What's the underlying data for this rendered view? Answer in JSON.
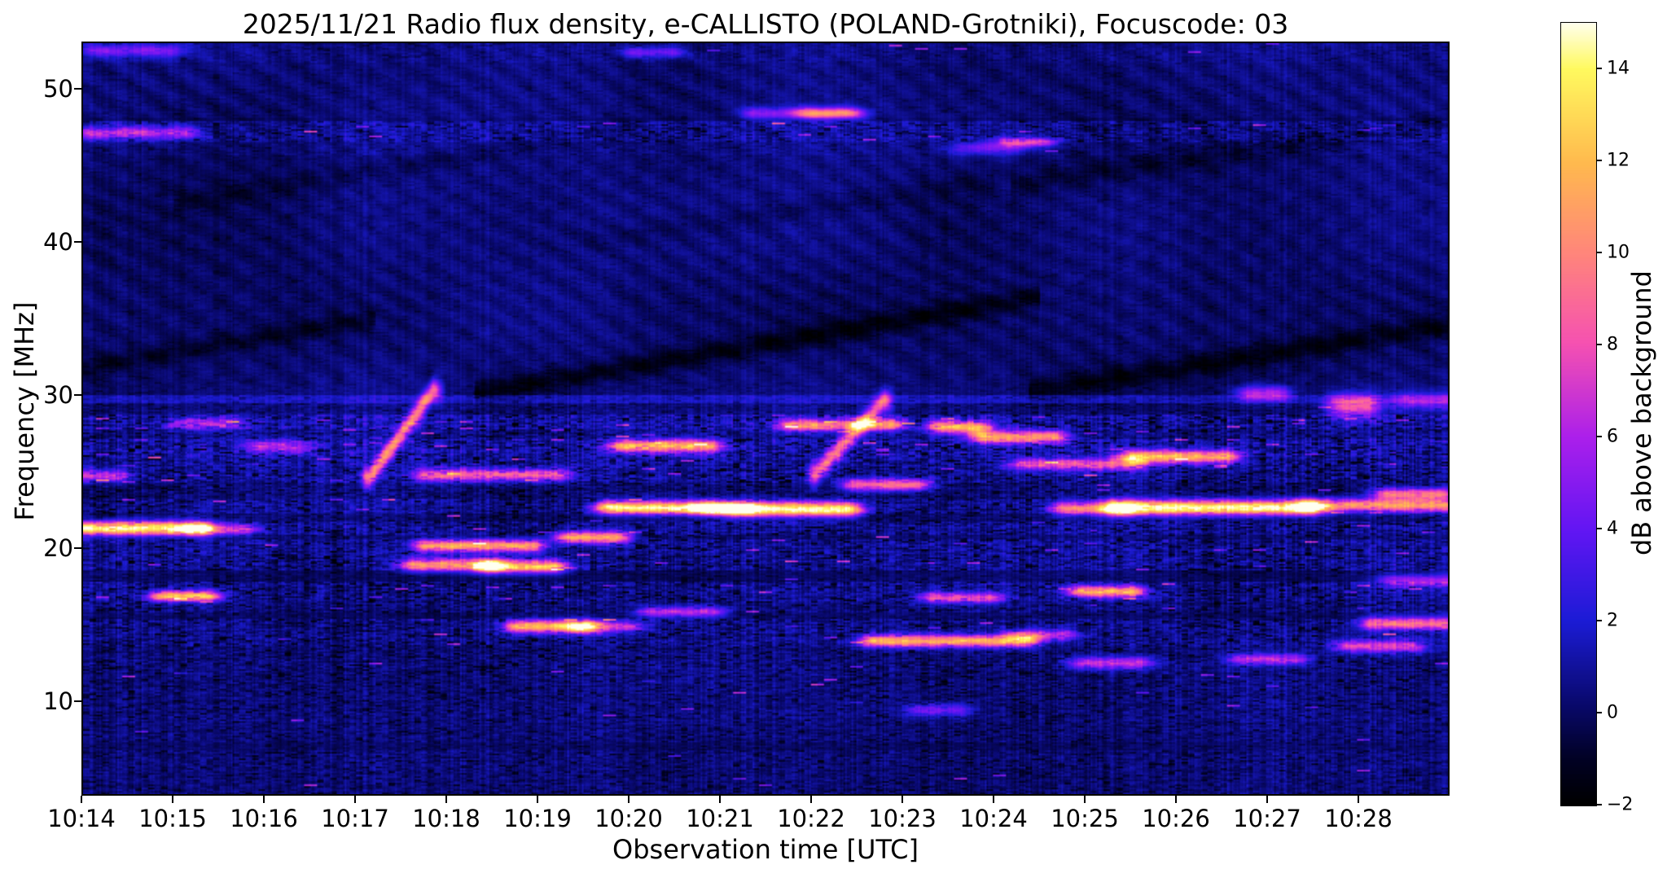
{
  "chart_data": {
    "type": "heatmap",
    "title": "2025/11/21  Radio flux density, e-CALLISTO (POLAND-Grotniki), Focuscode: 03",
    "xlabel": "Observation time [UTC]",
    "ylabel": "Frequency [MHz]",
    "cbar_label": "dB above background",
    "x_start": "10:14",
    "x_span_min": 15.0,
    "x_ticks": [
      {
        "label": "10:14",
        "min": 0
      },
      {
        "label": "10:15",
        "min": 1
      },
      {
        "label": "10:16",
        "min": 2
      },
      {
        "label": "10:17",
        "min": 3
      },
      {
        "label": "10:18",
        "min": 4
      },
      {
        "label": "10:19",
        "min": 5
      },
      {
        "label": "10:20",
        "min": 6
      },
      {
        "label": "10:21",
        "min": 7
      },
      {
        "label": "10:22",
        "min": 8
      },
      {
        "label": "10:23",
        "min": 9
      },
      {
        "label": "10:24",
        "min": 10
      },
      {
        "label": "10:25",
        "min": 11
      },
      {
        "label": "10:26",
        "min": 12
      },
      {
        "label": "10:27",
        "min": 13
      },
      {
        "label": "10:28",
        "min": 14
      }
    ],
    "y_ticks": [
      {
        "label": "50",
        "mhz": 50
      },
      {
        "label": "40",
        "mhz": 40
      },
      {
        "label": "30",
        "mhz": 30
      },
      {
        "label": "20",
        "mhz": 20
      },
      {
        "label": "10",
        "mhz": 10
      }
    ],
    "f_top": 53.1,
    "f_bottom": 3.8,
    "c_min": -2,
    "c_max": 15,
    "cbar_ticks": [
      {
        "label": "14",
        "db": 14
      },
      {
        "label": "12",
        "db": 12
      },
      {
        "label": "10",
        "db": 10
      },
      {
        "label": "8",
        "db": 8
      },
      {
        "label": "6",
        "db": 6
      },
      {
        "label": "4",
        "db": 4
      },
      {
        "label": "2",
        "db": 2
      },
      {
        "label": "0",
        "db": 0
      },
      {
        "label": "−2",
        "db": -2
      }
    ],
    "colormap_stops": [
      [
        0.0,
        0,
        0,
        0
      ],
      [
        0.06,
        2,
        2,
        38
      ],
      [
        0.12,
        8,
        8,
        100
      ],
      [
        0.235,
        28,
        28,
        214
      ],
      [
        0.35,
        98,
        22,
        244
      ],
      [
        0.47,
        172,
        32,
        235
      ],
      [
        0.59,
        246,
        82,
        177
      ],
      [
        0.7,
        255,
        132,
        125
      ],
      [
        0.82,
        255,
        186,
        78
      ],
      [
        0.94,
        255,
        250,
        95
      ],
      [
        1.0,
        255,
        255,
        240
      ]
    ],
    "bands": [
      [
        51.8,
        53.2,
        0.55,
        0.5,
        0.004
      ],
      [
        48.25,
        51.8,
        0.35,
        0.35,
        0.0005
      ],
      [
        47.95,
        48.25,
        0.05,
        0.25,
        0
      ],
      [
        46.6,
        47.95,
        0.85,
        1.05,
        0.01
      ],
      [
        45.8,
        46.6,
        0.5,
        0.5,
        0.002
      ],
      [
        30.65,
        45.8,
        0.3,
        0.33,
        0
      ],
      [
        29.95,
        30.65,
        0.35,
        0.4,
        0
      ],
      [
        29.45,
        29.95,
        1.7,
        0.65,
        0.002
      ],
      [
        28.75,
        29.45,
        0.45,
        0.7,
        0.002
      ],
      [
        27.75,
        28.75,
        1.25,
        1.55,
        0.018
      ],
      [
        27.15,
        27.75,
        0.7,
        1.1,
        0.008
      ],
      [
        25.95,
        27.15,
        1.25,
        1.55,
        0.018
      ],
      [
        25.15,
        25.95,
        1.0,
        1.4,
        0.012
      ],
      [
        24.25,
        25.15,
        0.8,
        1.3,
        0.01
      ],
      [
        23.15,
        24.25,
        0.35,
        0.9,
        0.004
      ],
      [
        22.25,
        23.15,
        0.8,
        1.2,
        0.008
      ],
      [
        21.65,
        22.25,
        0.25,
        0.7,
        0.003
      ],
      [
        20.85,
        21.65,
        0.9,
        1.3,
        0.01
      ],
      [
        20.5,
        20.85,
        0.3,
        0.8,
        0.003
      ],
      [
        19.65,
        20.5,
        0.9,
        1.3,
        0.01
      ],
      [
        18.45,
        19.65,
        0.85,
        1.3,
        0.01
      ],
      [
        17.75,
        18.45,
        0.15,
        0.5,
        0.001
      ],
      [
        16.45,
        17.75,
        0.85,
        1.3,
        0.012
      ],
      [
        15.75,
        16.45,
        0.6,
        1.0,
        0.006
      ],
      [
        15.25,
        15.75,
        0.2,
        0.6,
        0.002
      ],
      [
        14.45,
        15.25,
        0.75,
        1.2,
        0.01
      ],
      [
        13.45,
        14.45,
        0.75,
        1.2,
        0.01
      ],
      [
        12.75,
        13.45,
        0.5,
        0.9,
        0.005
      ],
      [
        11.95,
        12.75,
        0.6,
        1.0,
        0.006
      ],
      [
        10.65,
        11.95,
        0.55,
        0.9,
        0.004
      ],
      [
        9.45,
        10.65,
        0.55,
        0.85,
        0.004
      ],
      [
        8.45,
        9.45,
        0.6,
        0.9,
        0.005
      ],
      [
        7.25,
        8.45,
        0.5,
        0.8,
        0.003
      ],
      [
        6.65,
        7.25,
        0.2,
        0.5,
        0.002
      ],
      [
        5.45,
        6.65,
        0.5,
        0.85,
        0.004
      ],
      [
        3.8,
        5.45,
        0.45,
        0.8,
        0.003
      ]
    ],
    "features": [
      [
        0.0,
        1.25,
        21.25,
        0.32,
        15.5
      ],
      [
        1.25,
        1.75,
        21.2,
        0.26,
        7
      ],
      [
        0.9,
        1.35,
        16.8,
        0.24,
        13
      ],
      [
        0.1,
        1.1,
        47.2,
        0.3,
        6.5
      ],
      [
        3.8,
        4.9,
        20.1,
        0.28,
        12
      ],
      [
        5.35,
        5.85,
        20.65,
        0.26,
        12.5
      ],
      [
        3.65,
        4.45,
        18.85,
        0.3,
        11.5
      ],
      [
        4.5,
        5.15,
        18.75,
        0.3,
        13.5
      ],
      [
        4.8,
        5.5,
        14.8,
        0.3,
        13
      ],
      [
        5.5,
        6.0,
        14.8,
        0.26,
        7
      ],
      [
        5.8,
        6.9,
        22.6,
        0.3,
        15
      ],
      [
        7.2,
        8.4,
        22.5,
        0.34,
        15.8
      ],
      [
        6.85,
        7.25,
        22.55,
        0.26,
        10.5
      ],
      [
        5.95,
        6.85,
        26.65,
        0.3,
        12
      ],
      [
        8.5,
        9.15,
        24.1,
        0.28,
        10
      ],
      [
        7.8,
        8.15,
        28.0,
        0.28,
        10.5
      ],
      [
        8.5,
        8.85,
        28.05,
        0.28,
        11
      ],
      [
        9.45,
        9.8,
        27.9,
        0.3,
        12
      ],
      [
        9.9,
        10.65,
        27.25,
        0.3,
        11.5
      ],
      [
        10.35,
        11.55,
        25.45,
        0.28,
        8
      ],
      [
        11.55,
        12.55,
        25.95,
        0.3,
        12
      ],
      [
        10.8,
        11.4,
        22.55,
        0.3,
        10
      ],
      [
        11.4,
        13.45,
        22.6,
        0.34,
        15.8
      ],
      [
        13.5,
        15.0,
        22.75,
        0.3,
        11
      ],
      [
        14.35,
        14.9,
        23.5,
        0.28,
        10
      ],
      [
        8.7,
        10.35,
        13.85,
        0.28,
        12.5
      ],
      [
        10.3,
        10.75,
        14.25,
        0.25,
        7
      ],
      [
        9.35,
        9.95,
        16.7,
        0.25,
        8
      ],
      [
        6.25,
        6.9,
        15.75,
        0.25,
        7
      ],
      [
        11.0,
        11.5,
        17.1,
        0.26,
        12.5
      ],
      [
        13.9,
        14.6,
        13.5,
        0.3,
        7.5
      ],
      [
        14.2,
        15.0,
        15.0,
        0.3,
        9.5
      ],
      [
        14.4,
        15.0,
        17.8,
        0.3,
        6
      ],
      [
        11.0,
        11.6,
        12.4,
        0.28,
        7
      ],
      [
        12.75,
        13.3,
        12.65,
        0.25,
        6.5
      ],
      [
        7.4,
        8.45,
        48.5,
        0.28,
        5
      ],
      [
        8.0,
        8.35,
        48.5,
        0.25,
        6.5
      ],
      [
        10.2,
        10.55,
        46.6,
        0.22,
        7.5
      ],
      [
        9.7,
        10.2,
        46.2,
        0.3,
        4
      ],
      [
        13.85,
        14.08,
        29.3,
        0.55,
        9
      ],
      [
        12.85,
        13.1,
        30.1,
        0.35,
        7
      ],
      [
        0.15,
        0.95,
        52.6,
        0.3,
        4.5
      ],
      [
        6.1,
        6.45,
        52.5,
        0.25,
        4.5
      ],
      [
        9.2,
        9.6,
        9.3,
        0.3,
        4.5
      ],
      [
        1.95,
        2.35,
        26.6,
        0.3,
        6
      ],
      [
        1.1,
        1.6,
        28.1,
        0.3,
        5.5
      ],
      [
        0.0,
        0.35,
        24.7,
        0.3,
        7
      ],
      [
        3.8,
        5.2,
        24.75,
        0.3,
        9
      ],
      [
        14.55,
        15.0,
        29.6,
        0.4,
        5
      ]
    ],
    "drift_bursts": [
      [
        3.15,
        24.6,
        3.85,
        30.3,
        9,
        0.5
      ],
      [
        8.05,
        24.8,
        8.8,
        29.6,
        8.5,
        0.5
      ]
    ],
    "dark_diagonals": [
      [
        4.3,
        30.1,
        10.5,
        1.02,
        -1.8,
        0.5
      ],
      [
        10.4,
        30.2,
        15.0,
        0.95,
        -1.8,
        0.5
      ],
      [
        0.0,
        31.8,
        3.2,
        1.0,
        -1.3,
        0.45
      ],
      [
        1.0,
        42.5,
        6.0,
        1.0,
        -0.8,
        0.5
      ],
      [
        10.2,
        43.8,
        15.0,
        0.85,
        -1.0,
        0.55
      ],
      [
        5.5,
        40.0,
        10.0,
        0.9,
        -0.7,
        0.5
      ]
    ]
  }
}
